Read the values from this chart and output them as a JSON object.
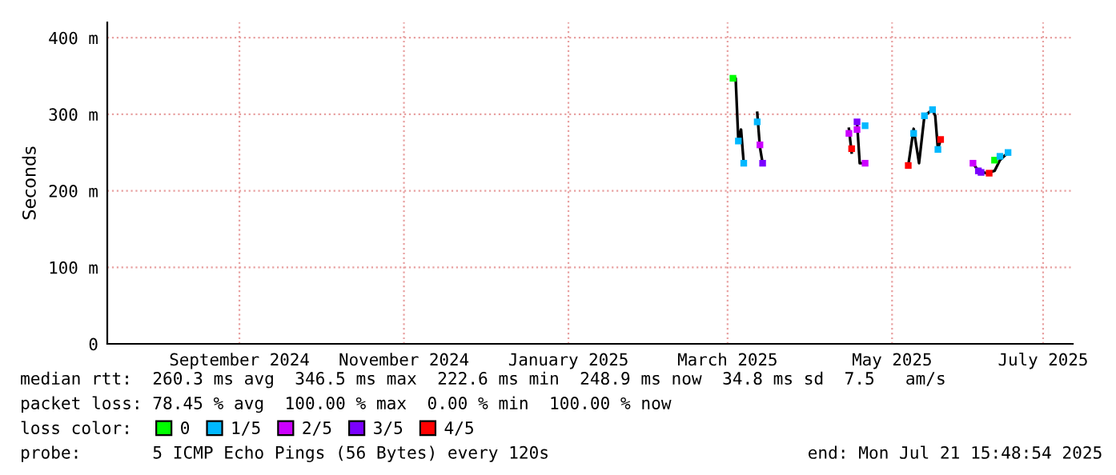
{
  "chart_data": {
    "type": "line",
    "ylabel": "Seconds",
    "legend_title": "loss color:",
    "x": [
      "2025-03-17",
      "2025-03-18",
      "2025-03-19",
      "2025-03-20",
      "2025-03-21",
      "2025-03-23",
      "2025-03-26",
      "2025-03-27",
      "2025-03-28",
      "2025-04-15",
      "2025-04-29",
      "2025-04-30",
      "2025-05-01",
      "2025-05-02",
      "2025-05-03",
      "2025-05-05",
      "2025-05-13",
      "2025-05-21",
      "2025-05-23",
      "2025-05-25",
      "2025-05-27",
      "2025-05-30",
      "2025-05-31",
      "2025-06-01",
      "2025-06-02",
      "2025-06-08",
      "2025-06-14",
      "2025-06-16",
      "2025-06-19",
      "2025-06-22",
      "2025-06-24",
      "2025-06-27"
    ],
    "series": [
      {
        "color": "#000000",
        "marker": "none",
        "values": [
          347,
          347,
          265,
          280,
          236,
          null,
          302,
          257,
          236,
          null,
          281,
          250,
          null,
          290,
          236,
          236,
          null,
          233,
          281,
          236,
          298,
          306,
          298,
          254,
          267,
          null,
          236,
          226,
          223,
          226,
          240,
          250
        ]
      },
      {
        "type": "scatter",
        "name": "0",
        "color": "#00ff00",
        "x": [
          "2025-03-17",
          "2025-06-22"
        ],
        "values": [
          347,
          240
        ]
      },
      {
        "type": "scatter",
        "name": "1/5",
        "color": "#00b8ff",
        "x": [
          "2025-03-19",
          "2025-03-21",
          "2025-03-26",
          "2025-05-05",
          "2025-05-23",
          "2025-05-27",
          "2025-05-30",
          "2025-06-01",
          "2025-06-24",
          "2025-06-27"
        ],
        "values": [
          265,
          236,
          290,
          285,
          275,
          298,
          306,
          254,
          245,
          250
        ]
      },
      {
        "type": "scatter",
        "name": "2/5",
        "color": "#cc00ff",
        "x": [
          "2025-03-27",
          "2025-04-29",
          "2025-05-02",
          "2025-05-05",
          "2025-06-14"
        ],
        "values": [
          260,
          275,
          280,
          236,
          236
        ]
      },
      {
        "type": "scatter",
        "name": "3/5",
        "color": "#7a00ff",
        "x": [
          "2025-03-28",
          "2025-05-02",
          "2025-06-16",
          "2025-06-17"
        ],
        "values": [
          236,
          290,
          226,
          224
        ]
      },
      {
        "type": "scatter",
        "name": "4/5",
        "color": "#ff0000",
        "x": [
          "2025-04-30",
          "2025-05-21",
          "2025-06-02",
          "2025-06-20"
        ],
        "values": [
          255,
          233,
          267,
          223
        ]
      }
    ],
    "xlim": [
      "2024-07-28",
      "2025-07-21"
    ],
    "xticks": [
      {
        "value": "2024-09-15",
        "label": "September 2024"
      },
      {
        "value": "2024-11-15",
        "label": "November 2024"
      },
      {
        "value": "2025-01-15",
        "label": "January 2025"
      },
      {
        "value": "2025-03-15",
        "label": "March 2025"
      },
      {
        "value": "2025-05-15",
        "label": "May 2025"
      },
      {
        "value": "2025-07-10",
        "label": "July 2025"
      }
    ],
    "ylim": [
      0,
      420
    ],
    "yticks": [
      0,
      {
        "value": 100,
        "label": "100 m"
      },
      {
        "value": 200,
        "label": "200 m"
      },
      {
        "value": 300,
        "label": "300 m"
      },
      {
        "value": 400,
        "label": "400 m"
      }
    ],
    "grid": true,
    "legend": "bottom",
    "marker": "square",
    "line_style": "solid",
    "annotations": [
      "median rtt:  260.3 ms avg  346.5 ms max  222.6 ms min  248.9 ms now  34.8 ms sd  7.5   am/s",
      "packet loss: 78.45 % avg  100.00 % max  0.00 % min  100.00 % now",
      "probe:       5 ICMP Echo Pings (56 Bytes) every 120s",
      "end: Mon Jul 21 15:48:54 2025"
    ]
  }
}
